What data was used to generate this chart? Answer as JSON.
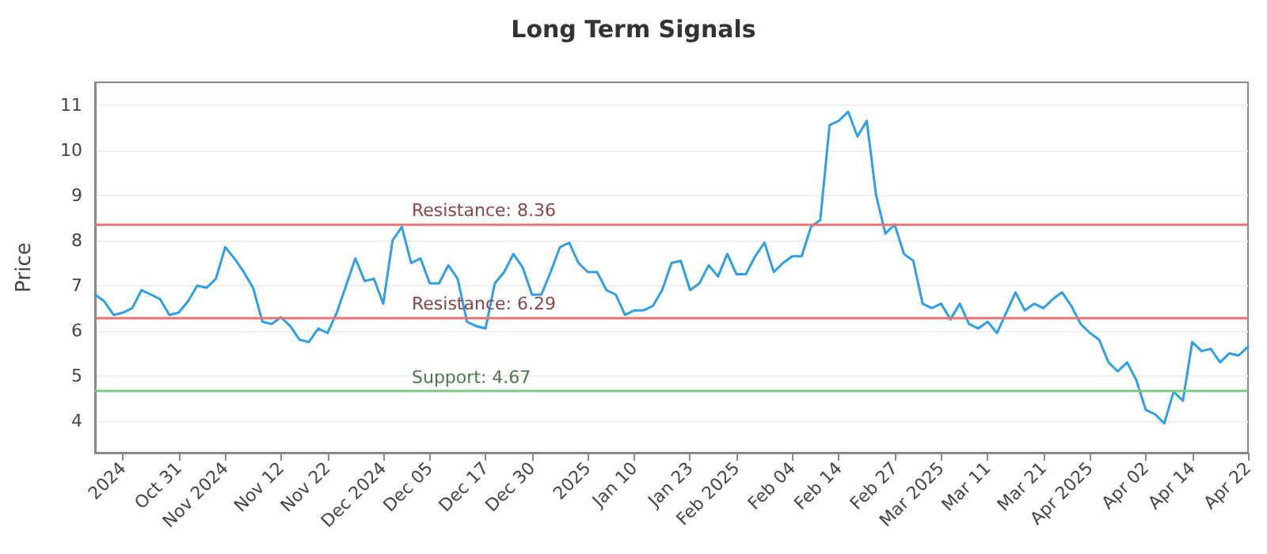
{
  "chart_data": {
    "type": "line",
    "title": "Long Term Signals",
    "ylabel": "Price",
    "categories": [
      null,
      null,
      null,
      "2024",
      null,
      null,
      null,
      null,
      null,
      "Oct 31",
      null,
      null,
      null,
      null,
      "Nov 2024",
      null,
      null,
      null,
      null,
      null,
      "Nov 12",
      null,
      null,
      null,
      null,
      "Nov 22",
      null,
      null,
      null,
      null,
      null,
      "Dec 2024",
      null,
      null,
      null,
      null,
      "Dec 05",
      null,
      null,
      null,
      null,
      null,
      "Dec 17",
      null,
      null,
      null,
      null,
      "Dec 30",
      null,
      null,
      null,
      null,
      null,
      "2025",
      null,
      null,
      null,
      null,
      "Jan 10",
      null,
      null,
      null,
      null,
      null,
      "Jan 23",
      null,
      null,
      null,
      null,
      "Feb 2025",
      null,
      null,
      null,
      null,
      null,
      "Feb 04",
      null,
      null,
      null,
      null,
      "Feb 14",
      null,
      null,
      null,
      null,
      null,
      "Feb 27",
      null,
      null,
      null,
      null,
      "Mar 2025",
      null,
      null,
      null,
      null,
      "Mar 11",
      null,
      null,
      null,
      null,
      null,
      "Mar 21",
      null,
      null,
      null,
      null,
      "Apr 2025",
      null,
      null,
      null,
      null,
      null,
      "Apr 02",
      null,
      null,
      null,
      null,
      "Apr 14",
      null,
      null,
      null,
      null,
      null,
      "Apr 22"
    ],
    "series": [
      {
        "color": "#2e9fe6",
        "values": [
          6.8,
          6.65,
          6.35,
          6.4,
          6.5,
          6.9,
          6.8,
          6.7,
          6.35,
          6.4,
          6.65,
          7.0,
          6.95,
          7.15,
          7.85,
          7.6,
          7.3,
          6.95,
          6.2,
          6.15,
          6.3,
          6.1,
          5.8,
          5.75,
          6.05,
          5.95,
          6.4,
          7.0,
          7.6,
          7.1,
          7.15,
          6.6,
          8.0,
          8.3,
          7.5,
          7.6,
          7.05,
          7.05,
          7.45,
          7.15,
          6.2,
          6.1,
          6.05,
          7.05,
          7.3,
          7.7,
          7.4,
          6.8,
          6.8,
          7.3,
          7.85,
          7.95,
          7.5,
          7.3,
          7.3,
          6.9,
          6.8,
          6.35,
          6.45,
          6.45,
          6.55,
          6.9,
          7.5,
          7.55,
          6.9,
          7.05,
          7.45,
          7.2,
          7.7,
          7.25,
          7.25,
          7.65,
          7.95,
          7.3,
          7.5,
          7.65,
          7.65,
          8.3,
          8.45,
          10.55,
          10.65,
          10.85,
          10.3,
          10.65,
          9.0,
          8.15,
          8.35,
          7.7,
          7.55,
          6.6,
          6.5,
          6.6,
          6.25,
          6.6,
          6.15,
          6.05,
          6.2,
          5.95,
          6.4,
          6.85,
          6.45,
          6.6,
          6.5,
          6.7,
          6.85,
          6.55,
          6.15,
          5.95,
          5.8,
          5.3,
          5.1,
          5.3,
          4.9,
          4.25,
          4.15,
          3.95,
          4.65,
          4.45,
          5.75,
          5.55,
          5.6,
          5.3,
          5.5,
          5.45,
          5.65
        ]
      }
    ],
    "ylim": [
      3.3,
      11.5
    ],
    "yticks": [
      4,
      5,
      6,
      7,
      8,
      9,
      10,
      11
    ],
    "ref_lines": [
      {
        "axis": "y",
        "value": 8.36,
        "label": "Resistance: 8.36",
        "color": "#e57373"
      },
      {
        "axis": "y",
        "value": 6.29,
        "label": "Resistance: 6.29",
        "color": "#e57373"
      },
      {
        "axis": "y",
        "value": 4.67,
        "label": "Support: 4.67",
        "color": "#81c784"
      }
    ],
    "grid": "y",
    "marker": "none",
    "line_style": "solid"
  }
}
